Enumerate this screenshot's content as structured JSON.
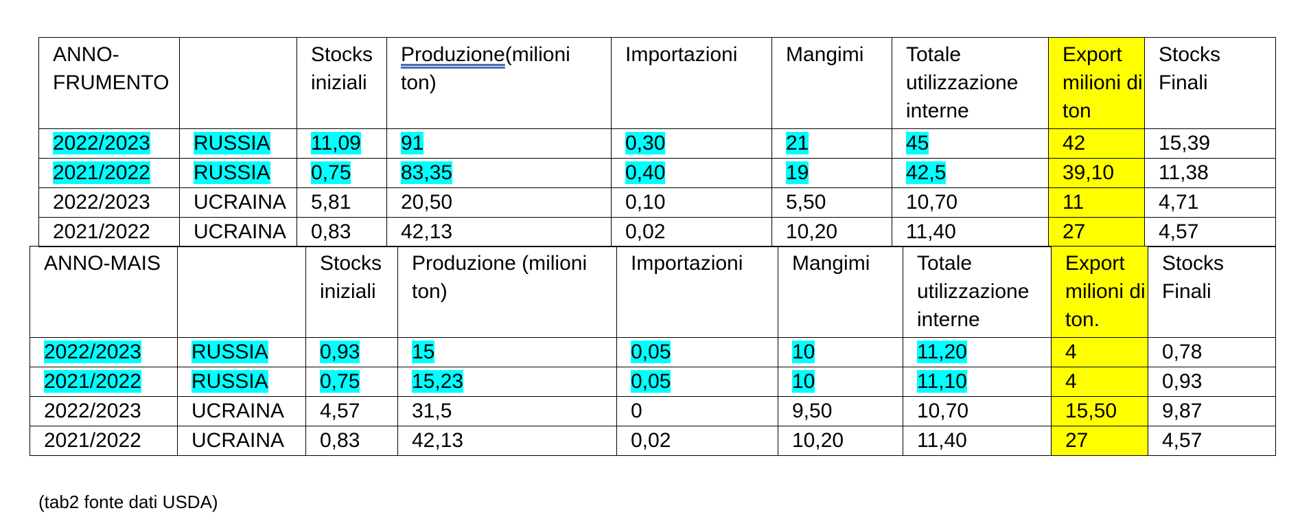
{
  "colors": {
    "row_highlight": "#00ffff",
    "export_column": "#ffff00"
  },
  "frumento": {
    "header": {
      "anno": "ANNO-FRUMENTO",
      "paese": "",
      "stocks_iniziali": "Stocks iniziali",
      "produzione_word": "Produzione",
      "produzione_rest": "(milioni ton)",
      "importazioni": "Importazioni",
      "mangimi": "Mangimi",
      "totale": "Totale utilizzazione interne",
      "export": "Export milioni di ton",
      "stocks_finali": "Stocks Finali"
    },
    "rows": [
      {
        "anno": "2022/2023",
        "paese": "RUSSIA",
        "stocks_iniziali": "11,09",
        "produzione": "91",
        "importazioni": "0,30",
        "mangimi": "21",
        "totale": "45",
        "export": "42",
        "stocks_finali": "15,39"
      },
      {
        "anno": "2021/2022",
        "paese": "RUSSIA",
        "stocks_iniziali": "0,75",
        "produzione": "83,35",
        "importazioni": "0,40",
        "mangimi": "19",
        "totale": "42,5",
        "export": "39,10",
        "stocks_finali": "11,38"
      },
      {
        "anno": "2022/2023",
        "paese": "UCRAINA",
        "stocks_iniziali": "5,81",
        "produzione": "20,50",
        "importazioni": "0,10",
        "mangimi": "5,50",
        "totale": "10,70",
        "export": "11",
        "stocks_finali": "4,71"
      },
      {
        "anno": "2021/2022",
        "paese": "UCRAINA",
        "stocks_iniziali": "0,83",
        "produzione": "42,13",
        "importazioni": "0,02",
        "mangimi": "10,20",
        "totale": "11,40",
        "export": "27",
        "stocks_finali": "4,57"
      }
    ]
  },
  "mais": {
    "header": {
      "anno": "ANNO-MAIS",
      "paese": "",
      "stocks_iniziali": "Stocks iniziali",
      "produzione": "Produzione (milioni ton)",
      "importazioni": "Importazioni",
      "mangimi": "Mangimi",
      "totale": "Totale utilizzazione interne",
      "export": "Export milioni di ton.",
      "stocks_finali": "Stocks Finali"
    },
    "rows": [
      {
        "anno": "2022/2023",
        "paese": "RUSSIA",
        "stocks_iniziali": "0,93",
        "produzione": "15",
        "importazioni": "0,05",
        "mangimi": "10",
        "totale": "11,20",
        "export": "4",
        "stocks_finali": "0,78"
      },
      {
        "anno": "2021/2022",
        "paese": "RUSSIA",
        "stocks_iniziali": "0,75",
        "produzione": "15,23",
        "importazioni": "0,05",
        "mangimi": "10",
        "totale": "11,10",
        "export": "4",
        "stocks_finali": "0,93"
      },
      {
        "anno": "2022/2023",
        "paese": "UCRAINA",
        "stocks_iniziali": "4,57",
        "produzione": "31,5",
        "importazioni": "0",
        "mangimi": "9,50",
        "totale": "10,70",
        "export": "15,50",
        "stocks_finali": "9,87"
      },
      {
        "anno": "2021/2022",
        "paese": "UCRAINA",
        "stocks_iniziali": "0,83",
        "produzione": "42,13",
        "importazioni": "0,02",
        "mangimi": "10,20",
        "totale": "11,40",
        "export": "27",
        "stocks_finali": "4,57"
      }
    ]
  },
  "footnote": "(tab2 fonte dati USDA)"
}
